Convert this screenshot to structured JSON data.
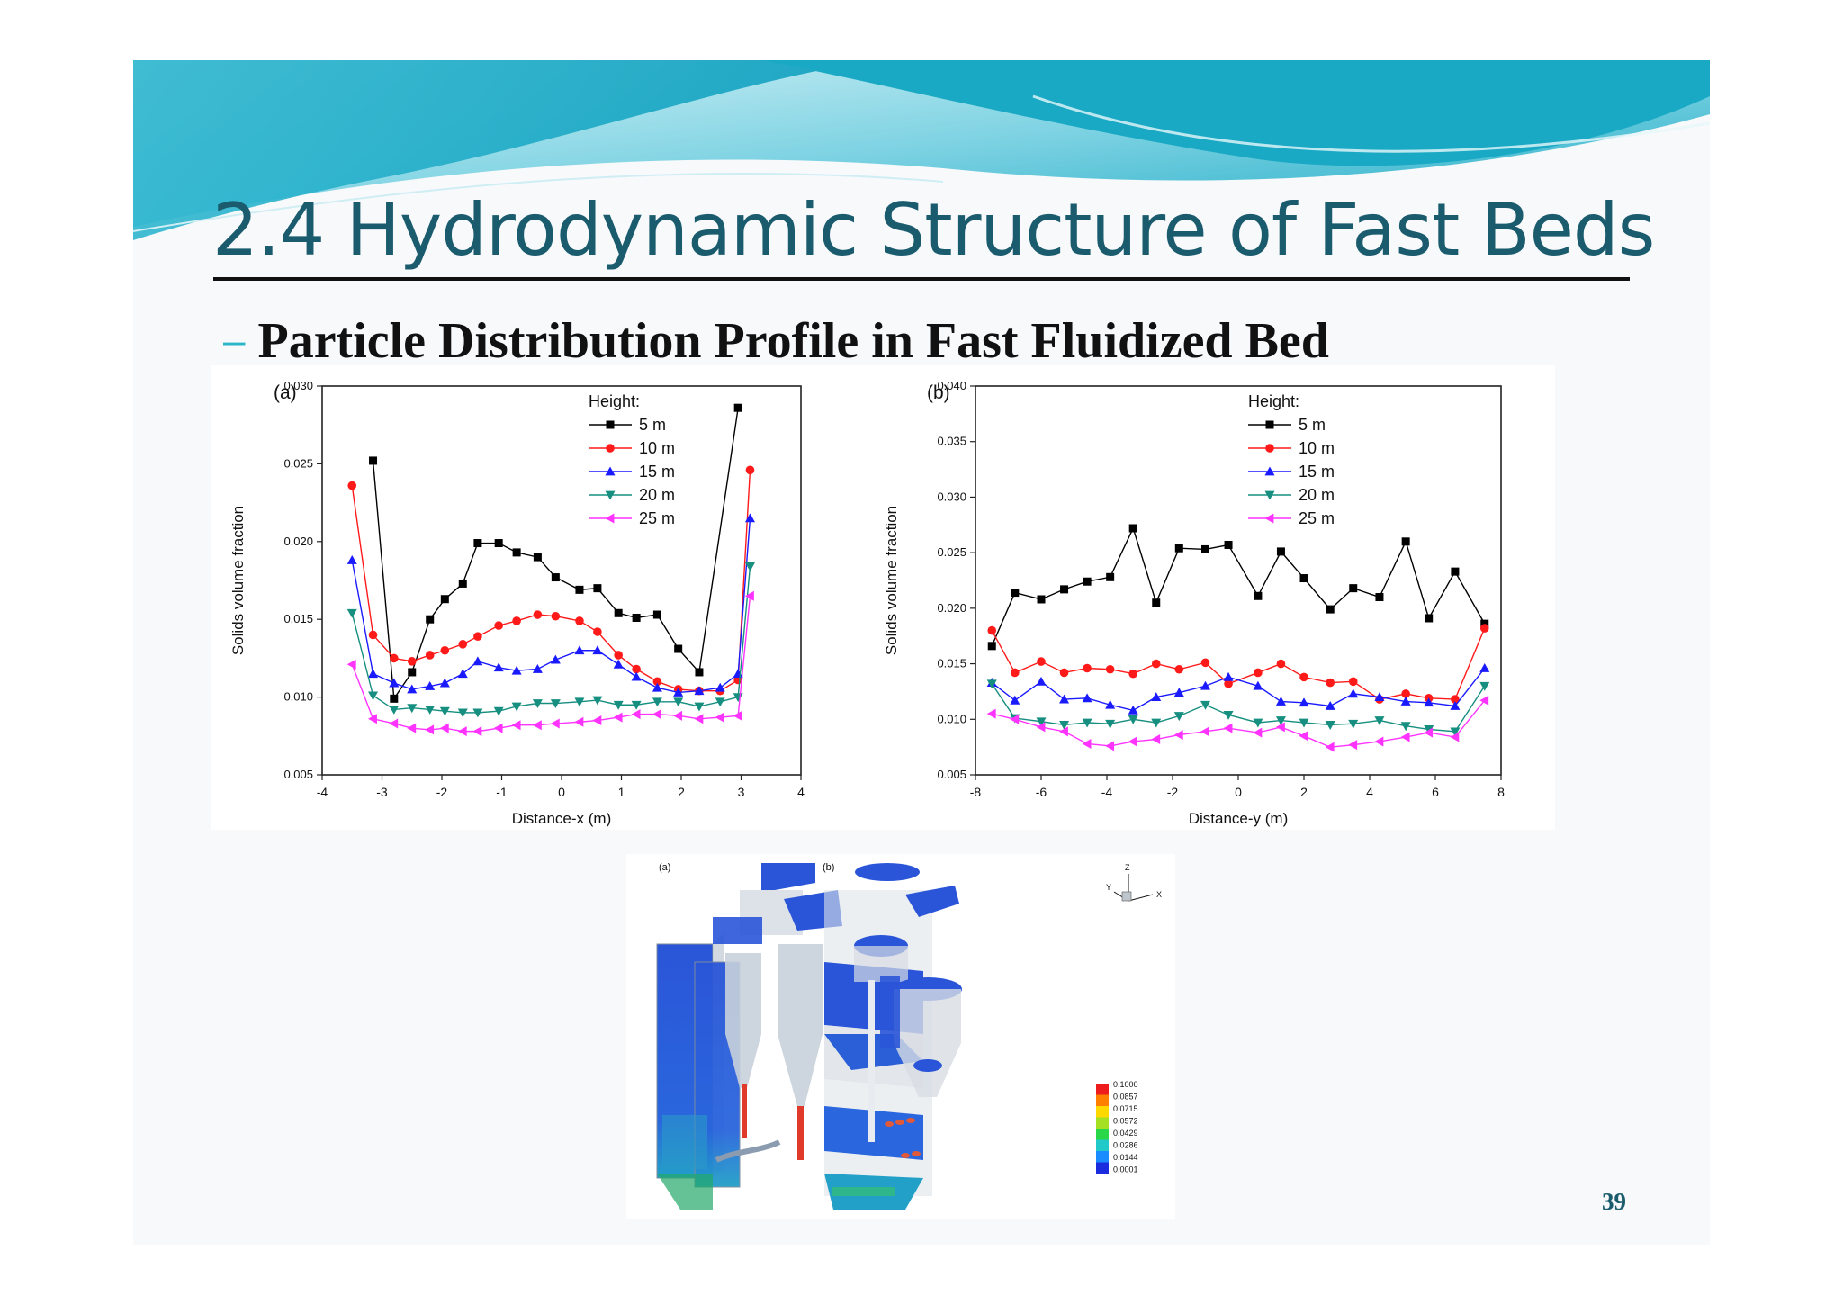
{
  "slide": {
    "title": "2.4 Hydrodynamic Structure of Fast Beds",
    "subtitle": "Particle Distribution Profile in Fast Fluidized Bed",
    "page_number": "39",
    "colors": {
      "title": "#1a5b6d",
      "banner_light": "#bfe8ef",
      "banner_dark": "#1aa9c4",
      "bullet": "#2ab6c9"
    }
  },
  "chart_data": [
    {
      "type": "line",
      "panel_label": "(a)",
      "xlabel": "Distance-x (m)",
      "ylabel": "Solids volume fraction",
      "xlim": [
        -4,
        4
      ],
      "ylim": [
        0.005,
        0.03
      ],
      "xticks": [
        "-4",
        "-3",
        "-2",
        "-1",
        "0",
        "1",
        "2",
        "3",
        "4"
      ],
      "yticks": [
        "0.005",
        "0.010",
        "0.015",
        "0.020",
        "0.025",
        "0.030"
      ],
      "legend_title": "Height:",
      "legend_position": "top-center",
      "grid": false,
      "x": [
        -3.5,
        -3.15,
        -2.8,
        -2.5,
        -2.2,
        -1.95,
        -1.65,
        -1.4,
        -1.05,
        -0.75,
        -0.4,
        -0.1,
        0.3,
        0.6,
        0.95,
        1.25,
        1.6,
        1.95,
        2.3,
        2.65,
        2.95,
        3.15,
        3.5
      ],
      "series": [
        {
          "name": "5 m",
          "color": "#000000",
          "marker": "square",
          "values": [
            null,
            0.0252,
            0.0099,
            0.0116,
            0.015,
            0.0163,
            0.0173,
            0.0199,
            0.0199,
            0.0193,
            0.019,
            0.0177,
            0.0169,
            0.017,
            0.0154,
            0.0151,
            0.0153,
            0.0131,
            0.0116,
            null,
            0.0286,
            null,
            null
          ]
        },
        {
          "name": "10 m",
          "color": "#ff1a1a",
          "marker": "circle",
          "values": [
            0.0236,
            0.014,
            0.0125,
            0.0123,
            0.0127,
            0.013,
            0.0134,
            0.0139,
            0.0146,
            0.0149,
            0.0153,
            0.0152,
            0.0149,
            0.0142,
            0.0127,
            0.0118,
            0.011,
            0.0105,
            0.0104,
            0.0104,
            0.0111,
            0.0246,
            null
          ]
        },
        {
          "name": "15 m",
          "color": "#1a1aff",
          "marker": "triangle-up",
          "values": [
            0.0188,
            0.0115,
            0.0109,
            0.0105,
            0.0107,
            0.0109,
            0.0115,
            0.0123,
            0.0119,
            0.0117,
            0.0118,
            0.0124,
            0.013,
            0.013,
            0.0121,
            0.0113,
            0.0106,
            0.0103,
            0.0104,
            0.0106,
            0.0115,
            0.0215,
            null
          ]
        },
        {
          "name": "20 m",
          "color": "#168f80",
          "marker": "triangle-down",
          "values": [
            0.0154,
            0.0101,
            0.0092,
            0.0093,
            0.0092,
            0.0091,
            0.009,
            0.009,
            0.0091,
            0.0094,
            0.0096,
            0.0096,
            0.0097,
            0.0098,
            0.0095,
            0.0095,
            0.0097,
            0.0097,
            0.0094,
            0.0097,
            0.01,
            0.0184,
            null
          ]
        },
        {
          "name": "25 m",
          "color": "#ff33ff",
          "marker": "triangle-left",
          "values": [
            0.0121,
            0.0086,
            0.0083,
            0.008,
            0.0079,
            0.008,
            0.0078,
            0.0078,
            0.008,
            0.0082,
            0.0082,
            0.0083,
            0.0084,
            0.0085,
            0.0087,
            0.0089,
            0.0089,
            0.0088,
            0.0086,
            0.0087,
            0.0088,
            0.0165,
            null
          ]
        }
      ]
    },
    {
      "type": "line",
      "panel_label": "(b)",
      "xlabel": "Distance-y (m)",
      "ylabel": "Solids volume fraction",
      "xlim": [
        -8,
        8
      ],
      "ylim": [
        0.005,
        0.04
      ],
      "xticks": [
        "-8",
        "-6",
        "-4",
        "-2",
        "0",
        "2",
        "4",
        "6",
        "8"
      ],
      "yticks": [
        "0.005",
        "0.010",
        "0.015",
        "0.020",
        "0.025",
        "0.030",
        "0.035",
        "0.040"
      ],
      "legend_title": "Height:",
      "legend_position": "top-right",
      "grid": false,
      "x": [
        -7.5,
        -6.8,
        -6.0,
        -5.3,
        -4.6,
        -3.9,
        -3.2,
        -2.5,
        -1.8,
        -1.0,
        -0.3,
        0.6,
        1.3,
        2.0,
        2.8,
        3.5,
        4.3,
        5.1,
        5.8,
        6.6,
        7.5
      ],
      "series": [
        {
          "name": "5 m",
          "color": "#000000",
          "marker": "square",
          "values": [
            0.0166,
            0.0214,
            0.0208,
            0.0217,
            0.0224,
            0.0228,
            0.0272,
            0.0205,
            0.0254,
            0.0253,
            0.0257,
            0.0211,
            0.0251,
            0.0227,
            0.0199,
            0.0218,
            0.021,
            0.026,
            0.0191,
            0.0233,
            0.0186
          ]
        },
        {
          "name": "10 m",
          "color": "#ff1a1a",
          "marker": "circle",
          "values": [
            0.018,
            0.0142,
            0.0152,
            0.0142,
            0.0146,
            0.0145,
            0.0141,
            0.015,
            0.0145,
            0.0151,
            0.0132,
            0.0142,
            0.015,
            0.0138,
            0.0133,
            0.0134,
            0.0118,
            0.0123,
            0.0119,
            0.0118,
            0.0182
          ]
        },
        {
          "name": "15 m",
          "color": "#1a1aff",
          "marker": "triangle-up",
          "values": [
            0.0133,
            0.0117,
            0.0134,
            0.0118,
            0.0119,
            0.0113,
            0.0108,
            0.012,
            0.0124,
            0.013,
            0.0138,
            0.013,
            0.0116,
            0.0115,
            0.0112,
            0.0123,
            0.012,
            0.0116,
            0.0115,
            0.0112,
            0.0146
          ]
        },
        {
          "name": "20 m",
          "color": "#168f80",
          "marker": "triangle-down",
          "values": [
            0.0132,
            0.0101,
            0.0098,
            0.0095,
            0.0097,
            0.0096,
            0.01,
            0.0097,
            0.0103,
            0.0113,
            0.0104,
            0.0097,
            0.0099,
            0.0097,
            0.0095,
            0.0096,
            0.0099,
            0.0094,
            0.0091,
            0.0089,
            0.013
          ]
        },
        {
          "name": "25 m",
          "color": "#ff33ff",
          "marker": "triangle-left",
          "values": [
            0.0105,
            0.01,
            0.0093,
            0.0089,
            0.0078,
            0.0076,
            0.008,
            0.0082,
            0.0086,
            0.0089,
            0.0092,
            0.0088,
            0.0093,
            0.0085,
            0.0075,
            0.0077,
            0.008,
            0.0084,
            0.0088,
            0.0084,
            0.0117
          ]
        }
      ]
    }
  ],
  "cfd_figure": {
    "panel_labels": [
      "(a)",
      "(b)"
    ],
    "axes": [
      "Z",
      "Y",
      "X"
    ],
    "colorbar_labels": [
      "0.1000",
      "0.0857",
      "0.0715",
      "0.0572",
      "0.0429",
      "0.0286",
      "0.0144",
      "0.0001"
    ],
    "colorbar_colors": [
      "#ee1c1c",
      "#ff7f00",
      "#ffd800",
      "#a6e022",
      "#28d848",
      "#22c9c9",
      "#1a8cff",
      "#1a2cdd"
    ]
  }
}
